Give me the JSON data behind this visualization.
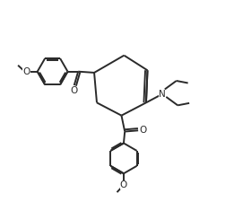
{
  "bg_color": "#ffffff",
  "line_color": "#2a2a2a",
  "line_width": 1.4,
  "figsize": [
    2.61,
    2.25
  ],
  "dpi": 100,
  "xlim": [
    0,
    10
  ],
  "ylim": [
    0,
    9
  ]
}
